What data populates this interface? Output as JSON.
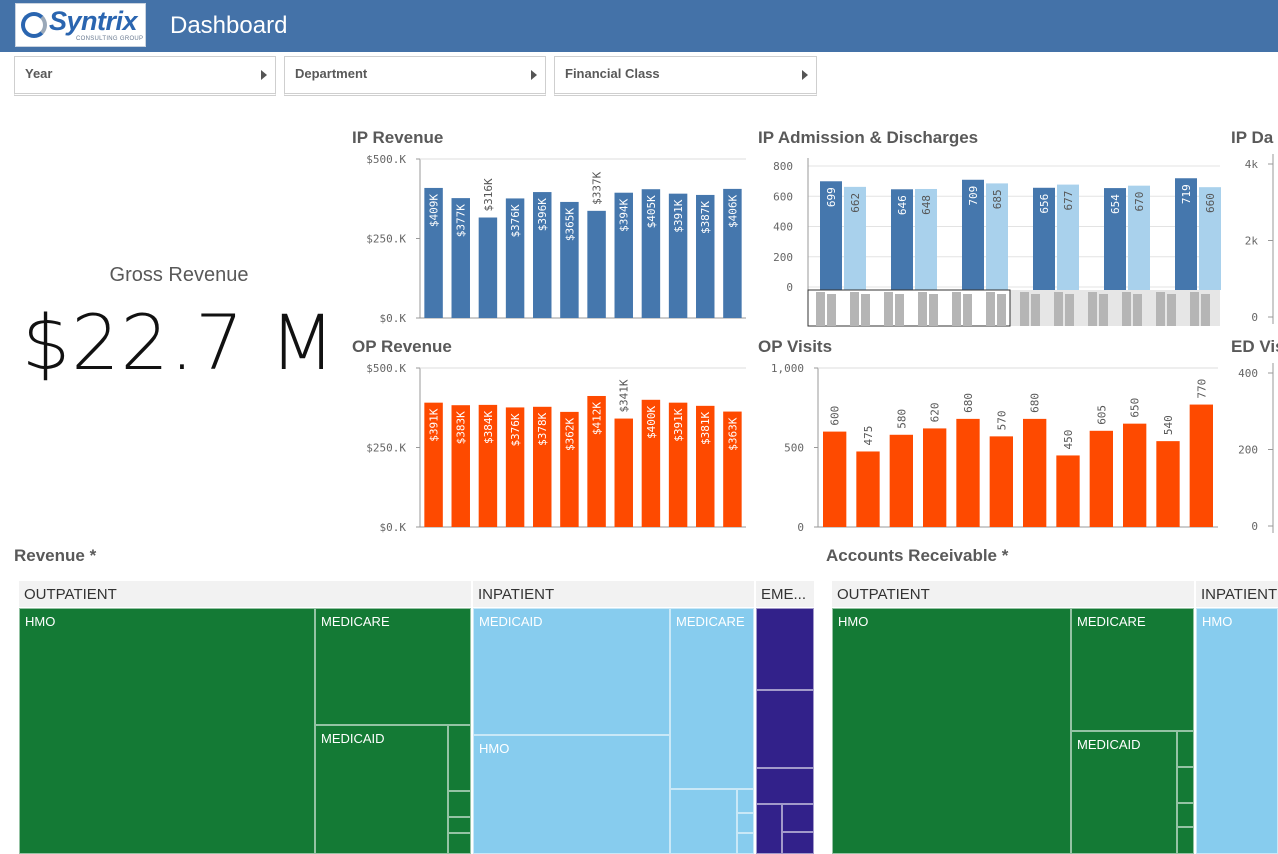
{
  "header": {
    "logo_text": "Syntrix",
    "logo_sub": "CONSULTING GROUP",
    "title": "Dashboard"
  },
  "filters": [
    {
      "label": "Year"
    },
    {
      "label": "Department"
    },
    {
      "label": "Financial Class"
    }
  ],
  "kpi": {
    "label": "Gross Revenue",
    "value": "$22.7 M"
  },
  "charts": {
    "ip_revenue_title": "IP Revenue",
    "ip_admission_title": "IP Admission & Discharges",
    "ip_days_title": "IP Da",
    "op_revenue_title": "OP Revenue",
    "op_visits_title": "OP Visits",
    "ed_visits_title": "ED Vis"
  },
  "colors": {
    "header_bg": "#4472a8",
    "ip_bar": "#4577ad",
    "ip_bar_light": "#a9d1ec",
    "op_bar": "#fe4a00",
    "green": "#147a35",
    "lightblue": "#87ccee",
    "purple": "#32218a"
  },
  "chart_data": [
    {
      "id": "ip_revenue",
      "type": "bar",
      "title": "IP Revenue",
      "values": [
        409,
        377,
        316,
        376,
        396,
        365,
        337,
        394,
        405,
        391,
        387,
        406
      ],
      "labels": [
        "$409K",
        "$377K",
        "$316K",
        "$376K",
        "$396K",
        "$365K",
        "$337K",
        "$394K",
        "$405K",
        "$391K",
        "$387K",
        "$406K"
      ],
      "yticks": [
        "$500.K",
        "$250.K",
        "$0.K"
      ],
      "ylim": [
        0,
        500
      ]
    },
    {
      "id": "op_revenue",
      "type": "bar",
      "title": "OP Revenue",
      "values": [
        391,
        383,
        384,
        376,
        378,
        362,
        412,
        341,
        400,
        391,
        381,
        363
      ],
      "labels": [
        "$391K",
        "$383K",
        "$384K",
        "$376K",
        "$378K",
        "$362K",
        "$412K",
        "$341K",
        "$400K",
        "$391K",
        "$381K",
        "$363K"
      ],
      "yticks": [
        "$500.K",
        "$250.K",
        "$0.K"
      ],
      "ylim": [
        0,
        500
      ]
    },
    {
      "id": "ip_admission",
      "type": "bar",
      "title": "IP Admission & Discharges",
      "series": [
        {
          "values": [
            699,
            646,
            709,
            656,
            654,
            719
          ]
        },
        {
          "values": [
            662,
            648,
            685,
            677,
            670,
            660
          ]
        }
      ],
      "yticks": [
        "800",
        "600",
        "400",
        "200",
        "0"
      ],
      "ylim": [
        0,
        800
      ]
    },
    {
      "id": "op_visits",
      "type": "bar",
      "title": "OP Visits",
      "values": [
        600,
        475,
        580,
        620,
        680,
        570,
        680,
        450,
        605,
        650,
        540,
        770
      ],
      "yticks": [
        "1,000",
        "500",
        "0"
      ],
      "ylim": [
        0,
        1000
      ]
    },
    {
      "id": "ip_days",
      "type": "bar",
      "title": "IP Da",
      "yticks": [
        "4k",
        "2k",
        "0"
      ]
    },
    {
      "id": "ed_visits",
      "type": "bar",
      "title": "ED Vis",
      "yticks": [
        "400",
        "200",
        "0"
      ]
    }
  ],
  "treemaps": {
    "revenue": {
      "title": "Revenue *",
      "headers": [
        "OUTPATIENT",
        "INPATIENT",
        "EME..."
      ],
      "cells": [
        "HMO",
        "MEDICARE",
        "MEDICAID",
        "MEDICAID",
        "MEDICARE",
        "HMO"
      ]
    },
    "ar": {
      "title": "Accounts Receivable *",
      "headers": [
        "OUTPATIENT",
        "INPATIENT"
      ],
      "cells": [
        "HMO",
        "MEDICARE",
        "MEDICAID",
        "HMO"
      ]
    }
  }
}
